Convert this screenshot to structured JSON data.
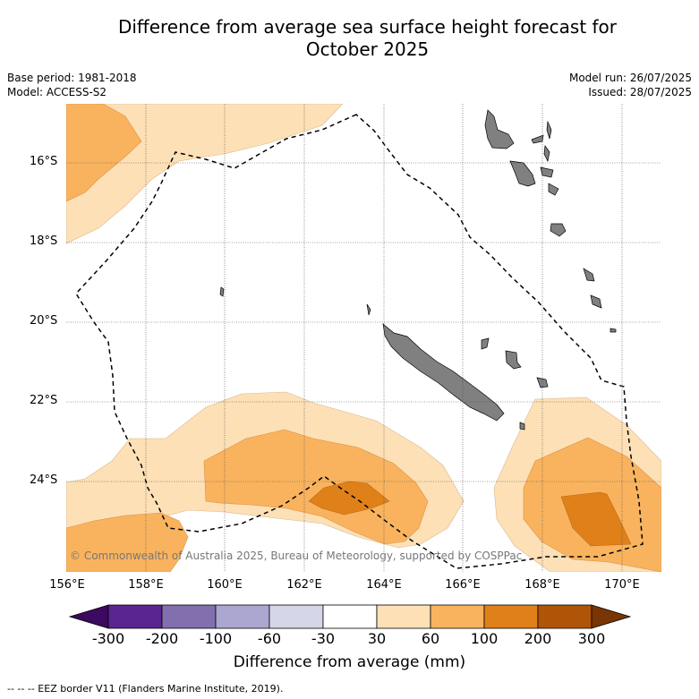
{
  "header": {
    "title_line1": "Difference from average sea surface height forecast for",
    "title_line2": "October 2025",
    "base_period": "Base period: 1981-2018",
    "model": "Model: ACCESS-S2",
    "model_run": "Model run: 26/07/2025",
    "issued": "Issued: 28/07/2025"
  },
  "map": {
    "lat_labels": [
      "16°S",
      "18°S",
      "20°S",
      "22°S",
      "24°S"
    ],
    "lon_labels": [
      "156°E",
      "158°E",
      "160°E",
      "162°E",
      "164°E",
      "166°E",
      "168°E",
      "170°E"
    ],
    "copyright": "© Commonwealth of Australia 2025, Bureau of Meteorology, supported by COSPPac",
    "colors": {
      "level_30_60": "#fde0b6",
      "level_60_100": "#f9b35e",
      "level_100_200": "#e08019",
      "land": "#808080",
      "eez_line": "#000000"
    }
  },
  "colorbar": {
    "ticks": [
      "-300",
      "-200",
      "-100",
      "-60",
      "-30",
      "30",
      "60",
      "100",
      "200",
      "300"
    ],
    "colors": [
      "#3c0a5e",
      "#5a2590",
      "#8270ae",
      "#aca7d0",
      "#d6d6e9",
      "#ffffff",
      "#fde0b6",
      "#f9b35e",
      "#e08019",
      "#b05507",
      "#7a3503"
    ],
    "title": "Difference from average (mm)"
  },
  "footnote": "--  --  -- EEZ border V11 (Flanders Marine Institute, 2019)."
}
